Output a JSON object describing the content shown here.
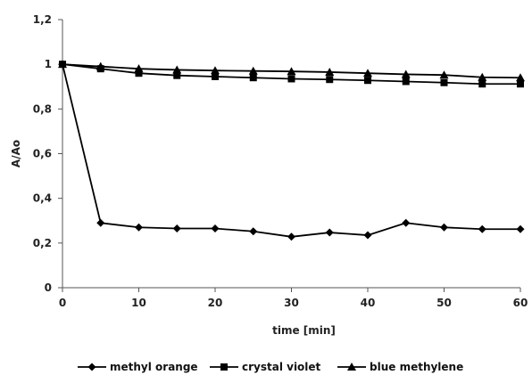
{
  "chart_data": {
    "type": "line",
    "title": "",
    "xlabel": "time [min]",
    "ylabel": "A/Ao",
    "xlim": [
      0,
      60
    ],
    "ylim": [
      0,
      1.2
    ],
    "x_ticks": [
      0,
      10,
      20,
      30,
      40,
      50,
      60
    ],
    "x_tick_labels": [
      "0",
      "10",
      "20",
      "30",
      "40",
      "50",
      "60"
    ],
    "y_ticks": [
      0,
      0.2,
      0.4,
      0.6,
      0.8,
      1.0,
      1.2
    ],
    "y_tick_labels": [
      "0",
      "0,2",
      "0,4",
      "0,6",
      "0,8",
      "1",
      "1,2"
    ],
    "grid": false,
    "legend_position": "bottom",
    "x": [
      0,
      5,
      10,
      15,
      20,
      25,
      30,
      35,
      40,
      45,
      50,
      55,
      60
    ],
    "series": [
      {
        "name": "methyl orange",
        "marker": "diamond",
        "color": "#000000",
        "values": [
          1.0,
          0.29,
          0.27,
          0.265,
          0.265,
          0.252,
          0.228,
          0.247,
          0.235,
          0.29,
          0.27,
          0.262,
          0.262
        ]
      },
      {
        "name": "crystal violet",
        "marker": "square",
        "color": "#000000",
        "values": [
          1.0,
          0.98,
          0.96,
          0.95,
          0.945,
          0.94,
          0.935,
          0.932,
          0.928,
          0.923,
          0.918,
          0.912,
          0.912
        ]
      },
      {
        "name": "blue methylene",
        "marker": "triangle",
        "color": "#000000",
        "values": [
          1.0,
          0.99,
          0.98,
          0.975,
          0.972,
          0.97,
          0.968,
          0.965,
          0.96,
          0.955,
          0.952,
          0.942,
          0.94
        ]
      }
    ]
  }
}
